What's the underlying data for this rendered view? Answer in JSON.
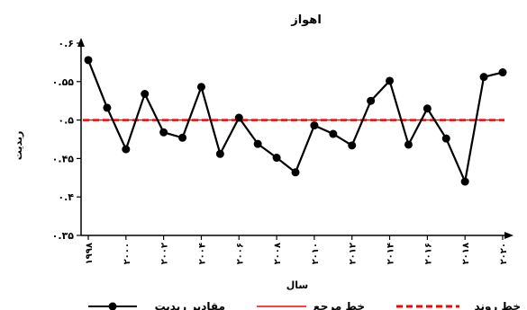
{
  "chart_data": {
    "type": "line",
    "title": "اهواز",
    "xlabel": "سال",
    "ylabel": "ربدیت",
    "ylim": [
      0.35,
      0.6
    ],
    "yticks": [
      "۰.۶",
      "۰.۵۵",
      "۰.۵",
      "۰.۴۵",
      "۰.۴",
      "۰.۳۵"
    ],
    "ytick_values": [
      0.6,
      0.55,
      0.5,
      0.45,
      0.4,
      0.35
    ],
    "x": [
      1998,
      1999,
      2000,
      2001,
      2002,
      2003,
      2004,
      2005,
      2006,
      2007,
      2008,
      2009,
      2010,
      2011,
      2012,
      2013,
      2014,
      2015,
      2016,
      2017,
      2018,
      2019,
      2020
    ],
    "xticks": [
      "۱۹۹۸",
      "۲۰۰۰",
      "۲۰۰۲",
      "۲۰۰۴",
      "۲۰۰۶",
      "۲۰۰۸",
      "۲۰۱۰",
      "۲۰۱۲",
      "۲۰۱۴",
      "۲۰۱۶",
      "۲۰۱۸",
      "۲۰۲۰"
    ],
    "xtick_values": [
      1998,
      2000,
      2002,
      2004,
      2006,
      2008,
      2010,
      2012,
      2014,
      2016,
      2018,
      2020
    ],
    "series": [
      {
        "name": "مقادیر ربدیت",
        "color": "#000000",
        "values": [
          0.578,
          0.516,
          0.462,
          0.534,
          0.484,
          0.477,
          0.543,
          0.456,
          0.503,
          0.469,
          0.451,
          0.432,
          0.493,
          0.482,
          0.467,
          0.525,
          0.551,
          0.468,
          0.515,
          0.476,
          0.42,
          0.556,
          0.562
        ]
      }
    ],
    "reference_lines": [
      {
        "name": "خط مرجع",
        "value": 0.5,
        "color": "#ff0000",
        "style": "solid"
      },
      {
        "name": "خط روند",
        "value": 0.5,
        "color": "#ff0000",
        "style": "dashed"
      }
    ],
    "grid": false,
    "legend_position": "bottom"
  }
}
